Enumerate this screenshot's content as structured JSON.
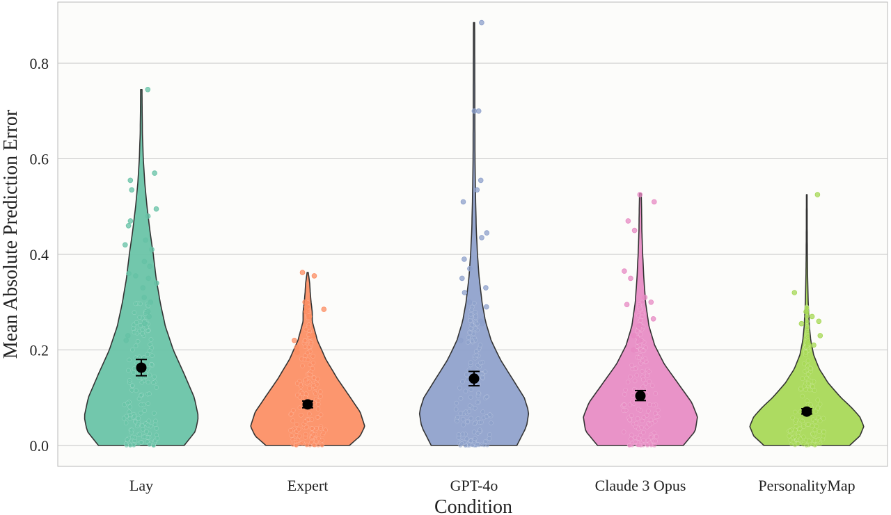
{
  "chart_data": {
    "type": "violin",
    "xlabel": "Condition",
    "ylabel": "Mean Absolute Prediction Error",
    "ylim": [
      -0.045,
      0.93
    ],
    "yticks": [
      0.0,
      0.2,
      0.4,
      0.6,
      0.8
    ],
    "ytick_labels": [
      "0.0",
      "0.2",
      "0.4",
      "0.6",
      "0.8"
    ],
    "grid": "horizontal",
    "categories": [
      "Lay",
      "Expert",
      "GPT-4o",
      "Claude 3 Opus",
      "PersonalityMap"
    ],
    "series": [
      {
        "category": "Lay",
        "color": "#66c2a5",
        "mean": 0.163,
        "ci_low": 0.146,
        "ci_high": 0.18,
        "max": 0.745,
        "outliers": [
          0.745,
          0.57,
          0.555,
          0.535,
          0.495,
          0.48,
          0.47,
          0.46,
          0.43,
          0.42,
          0.41,
          0.385,
          0.375,
          0.36,
          0.355,
          0.35,
          0.34,
          0.33,
          0.31,
          0.3,
          0.28,
          0.27,
          0.255,
          0.23,
          0.22
        ],
        "density": [
          [
            0.0,
            0.75
          ],
          [
            0.03,
            0.95
          ],
          [
            0.06,
            1.0
          ],
          [
            0.1,
            0.93
          ],
          [
            0.15,
            0.75
          ],
          [
            0.2,
            0.56
          ],
          [
            0.25,
            0.42
          ],
          [
            0.3,
            0.33
          ],
          [
            0.35,
            0.26
          ],
          [
            0.4,
            0.21
          ],
          [
            0.45,
            0.15
          ],
          [
            0.5,
            0.1
          ],
          [
            0.55,
            0.06
          ],
          [
            0.6,
            0.035
          ],
          [
            0.65,
            0.02
          ],
          [
            0.7,
            0.015
          ],
          [
            0.745,
            0.012
          ]
        ]
      },
      {
        "category": "Expert",
        "color": "#fc8d62",
        "mean": 0.086,
        "ci_low": 0.079,
        "ci_high": 0.093,
        "max": 0.362,
        "outliers": [
          0.362,
          0.355,
          0.3,
          0.29,
          0.285,
          0.28,
          0.27,
          0.23,
          0.22,
          0.205,
          0.195
        ],
        "density": [
          [
            0.0,
            0.73
          ],
          [
            0.02,
            0.92
          ],
          [
            0.04,
            1.0
          ],
          [
            0.07,
            0.92
          ],
          [
            0.1,
            0.75
          ],
          [
            0.14,
            0.52
          ],
          [
            0.18,
            0.32
          ],
          [
            0.22,
            0.17
          ],
          [
            0.26,
            0.08
          ],
          [
            0.28,
            0.08
          ],
          [
            0.3,
            0.06
          ],
          [
            0.32,
            0.045
          ],
          [
            0.34,
            0.035
          ],
          [
            0.362,
            0.01
          ]
        ]
      },
      {
        "category": "GPT-4o",
        "color": "#8da0cb",
        "mean": 0.14,
        "ci_low": 0.125,
        "ci_high": 0.155,
        "max": 0.885,
        "outliers": [
          0.885,
          0.7,
          0.7,
          0.555,
          0.535,
          0.51,
          0.445,
          0.435,
          0.39,
          0.37,
          0.35,
          0.33,
          0.32,
          0.3,
          0.29,
          0.26,
          0.255,
          0.22
        ],
        "density": [
          [
            0.0,
            0.75
          ],
          [
            0.04,
            0.92
          ],
          [
            0.07,
            0.96
          ],
          [
            0.1,
            0.88
          ],
          [
            0.14,
            0.67
          ],
          [
            0.18,
            0.46
          ],
          [
            0.22,
            0.3
          ],
          [
            0.26,
            0.2
          ],
          [
            0.3,
            0.14
          ],
          [
            0.35,
            0.09
          ],
          [
            0.4,
            0.06
          ],
          [
            0.45,
            0.04
          ],
          [
            0.5,
            0.03
          ],
          [
            0.55,
            0.022
          ],
          [
            0.6,
            0.017
          ],
          [
            0.7,
            0.014
          ],
          [
            0.8,
            0.012
          ],
          [
            0.885,
            0.01
          ]
        ]
      },
      {
        "category": "Claude 3 Opus",
        "color": "#e78ac3",
        "mean": 0.104,
        "ci_low": 0.094,
        "ci_high": 0.115,
        "max": 0.527,
        "outliers": [
          0.525,
          0.51,
          0.47,
          0.45,
          0.365,
          0.35,
          0.31,
          0.3,
          0.295,
          0.265,
          0.25,
          0.23,
          0.22,
          0.2
        ],
        "density": [
          [
            0.0,
            0.75
          ],
          [
            0.03,
            0.96
          ],
          [
            0.06,
            1.0
          ],
          [
            0.09,
            0.9
          ],
          [
            0.13,
            0.66
          ],
          [
            0.17,
            0.42
          ],
          [
            0.21,
            0.25
          ],
          [
            0.25,
            0.15
          ],
          [
            0.3,
            0.09
          ],
          [
            0.35,
            0.06
          ],
          [
            0.4,
            0.04
          ],
          [
            0.45,
            0.025
          ],
          [
            0.5,
            0.02
          ],
          [
            0.527,
            0.015
          ]
        ]
      },
      {
        "category": "PersonalityMap",
        "color": "#a6d854",
        "mean": 0.071,
        "ci_low": 0.066,
        "ci_high": 0.077,
        "max": 0.525,
        "outliers": [
          0.525,
          0.32,
          0.28,
          0.27,
          0.26,
          0.255,
          0.23,
          0.215,
          0.21
        ],
        "density": [
          [
            0.0,
            0.75
          ],
          [
            0.02,
            0.93
          ],
          [
            0.04,
            1.0
          ],
          [
            0.06,
            0.93
          ],
          [
            0.08,
            0.78
          ],
          [
            0.1,
            0.6
          ],
          [
            0.13,
            0.38
          ],
          [
            0.16,
            0.22
          ],
          [
            0.19,
            0.12
          ],
          [
            0.22,
            0.07
          ],
          [
            0.25,
            0.045
          ],
          [
            0.3,
            0.025
          ],
          [
            0.35,
            0.015
          ],
          [
            0.4,
            0.01
          ],
          [
            0.45,
            0.008
          ],
          [
            0.525,
            0.006
          ]
        ]
      }
    ]
  }
}
